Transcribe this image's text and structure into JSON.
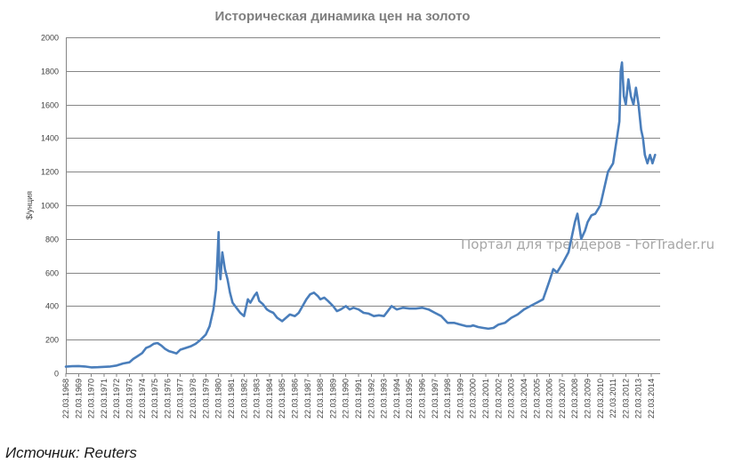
{
  "chart_data": {
    "type": "line",
    "title": "Историческая динамика цен на золото",
    "ylabel": "$/унция",
    "xlabel": "",
    "ylim": [
      0,
      2000
    ],
    "yticks": [
      0,
      200,
      400,
      600,
      800,
      1000,
      1200,
      1400,
      1600,
      1800,
      2000
    ],
    "grid": true,
    "x_start_year": 1968,
    "x_end_year": 2014,
    "categories": [
      "22.03.1968",
      "22.03.1969",
      "22.03.1970",
      "22.03.1971",
      "22.03.1972",
      "22.03.1973",
      "22.03.1974",
      "22.03.1975",
      "22.03.1976",
      "22.03.1977",
      "22.03.1978",
      "22.03.1979",
      "22.03.1980",
      "22.03.1981",
      "22.03.1982",
      "22.03.1983",
      "22.03.1984",
      "22.03.1985",
      "22.03.1986",
      "22.03.1987",
      "22.03.1988",
      "22.03.1989",
      "22.03.1990",
      "22.03.1991",
      "22.03.1992",
      "22.03.1993",
      "22.03.1994",
      "22.03.1995",
      "22.03.1996",
      "22.03.1997",
      "22.03.1998",
      "22.03.1999",
      "22.03.2000",
      "22.03.2001",
      "22.03.2002",
      "22.03.2003",
      "22.03.2004",
      "22.03.2005",
      "22.03.2006",
      "22.03.2007",
      "22.03.2008",
      "22.03.2009",
      "22.03.2010",
      "22.03.2011",
      "22.03.2012",
      "22.03.2013",
      "22.03.2014"
    ],
    "series": [
      {
        "color": "#4a7ebb",
        "x": [
          1968.0,
          1968.5,
          1969.0,
          1969.5,
          1970.0,
          1970.5,
          1971.0,
          1971.5,
          1972.0,
          1972.5,
          1973.0,
          1973.3,
          1973.6,
          1974.0,
          1974.3,
          1974.6,
          1974.9,
          1975.2,
          1975.5,
          1975.8,
          1976.1,
          1976.4,
          1976.7,
          1977.0,
          1977.4,
          1977.8,
          1978.2,
          1978.6,
          1979.0,
          1979.3,
          1979.6,
          1979.8,
          1980.0,
          1980.05,
          1980.15,
          1980.3,
          1980.5,
          1980.7,
          1980.9,
          1981.1,
          1981.4,
          1981.7,
          1982.0,
          1982.3,
          1982.5,
          1982.8,
          1983.0,
          1983.2,
          1983.5,
          1983.8,
          1984.0,
          1984.3,
          1984.6,
          1985.0,
          1985.3,
          1985.6,
          1986.0,
          1986.3,
          1986.6,
          1986.9,
          1987.2,
          1987.5,
          1987.8,
          1988.0,
          1988.3,
          1988.6,
          1989.0,
          1989.3,
          1989.6,
          1990.0,
          1990.3,
          1990.6,
          1991.0,
          1991.4,
          1991.8,
          1992.2,
          1992.6,
          1993.0,
          1993.3,
          1993.6,
          1994.0,
          1994.5,
          1995.0,
          1995.5,
          1996.0,
          1996.5,
          1997.0,
          1997.5,
          1998.0,
          1998.5,
          1999.0,
          1999.5,
          1999.8,
          2000.0,
          2000.4,
          2000.8,
          2001.2,
          2001.6,
          2002.0,
          2002.5,
          2003.0,
          2003.5,
          2004.0,
          2004.5,
          2005.0,
          2005.5,
          2006.0,
          2006.3,
          2006.6,
          2007.0,
          2007.5,
          2008.0,
          2008.2,
          2008.5,
          2008.8,
          2009.0,
          2009.3,
          2009.6,
          2010.0,
          2010.3,
          2010.6,
          2011.0,
          2011.3,
          2011.5,
          2011.6,
          2011.7,
          2011.85,
          2012.0,
          2012.2,
          2012.4,
          2012.6,
          2012.8,
          2013.0,
          2013.2,
          2013.35,
          2013.5,
          2013.7,
          2013.9,
          2014.1,
          2014.3
        ],
        "y": [
          39,
          42,
          43,
          40,
          35,
          36,
          38,
          40,
          46,
          58,
          65,
          85,
          100,
          120,
          150,
          160,
          175,
          180,
          165,
          145,
          132,
          125,
          118,
          140,
          150,
          160,
          175,
          200,
          230,
          280,
          380,
          500,
          840,
          650,
          560,
          720,
          620,
          560,
          480,
          420,
          390,
          360,
          340,
          440,
          420,
          460,
          480,
          430,
          410,
          380,
          370,
          360,
          330,
          310,
          330,
          350,
          340,
          360,
          400,
          440,
          470,
          480,
          460,
          440,
          450,
          430,
          400,
          370,
          380,
          400,
          380,
          390,
          380,
          360,
          355,
          340,
          345,
          340,
          370,
          400,
          380,
          390,
          385,
          385,
          390,
          380,
          360,
          340,
          300,
          300,
          290,
          280,
          280,
          285,
          275,
          270,
          265,
          270,
          290,
          300,
          330,
          350,
          380,
          400,
          420,
          440,
          550,
          620,
          600,
          650,
          720,
          900,
          950,
          800,
          850,
          900,
          940,
          950,
          1000,
          1100,
          1200,
          1250,
          1400,
          1500,
          1800,
          1850,
          1650,
          1600,
          1750,
          1650,
          1600,
          1700,
          1600,
          1450,
          1400,
          1300,
          1250,
          1300,
          1250,
          1300
        ]
      }
    ]
  },
  "watermark": "Портал для трейдеров - ForTrader.ru",
  "source": "Источник: Reuters"
}
